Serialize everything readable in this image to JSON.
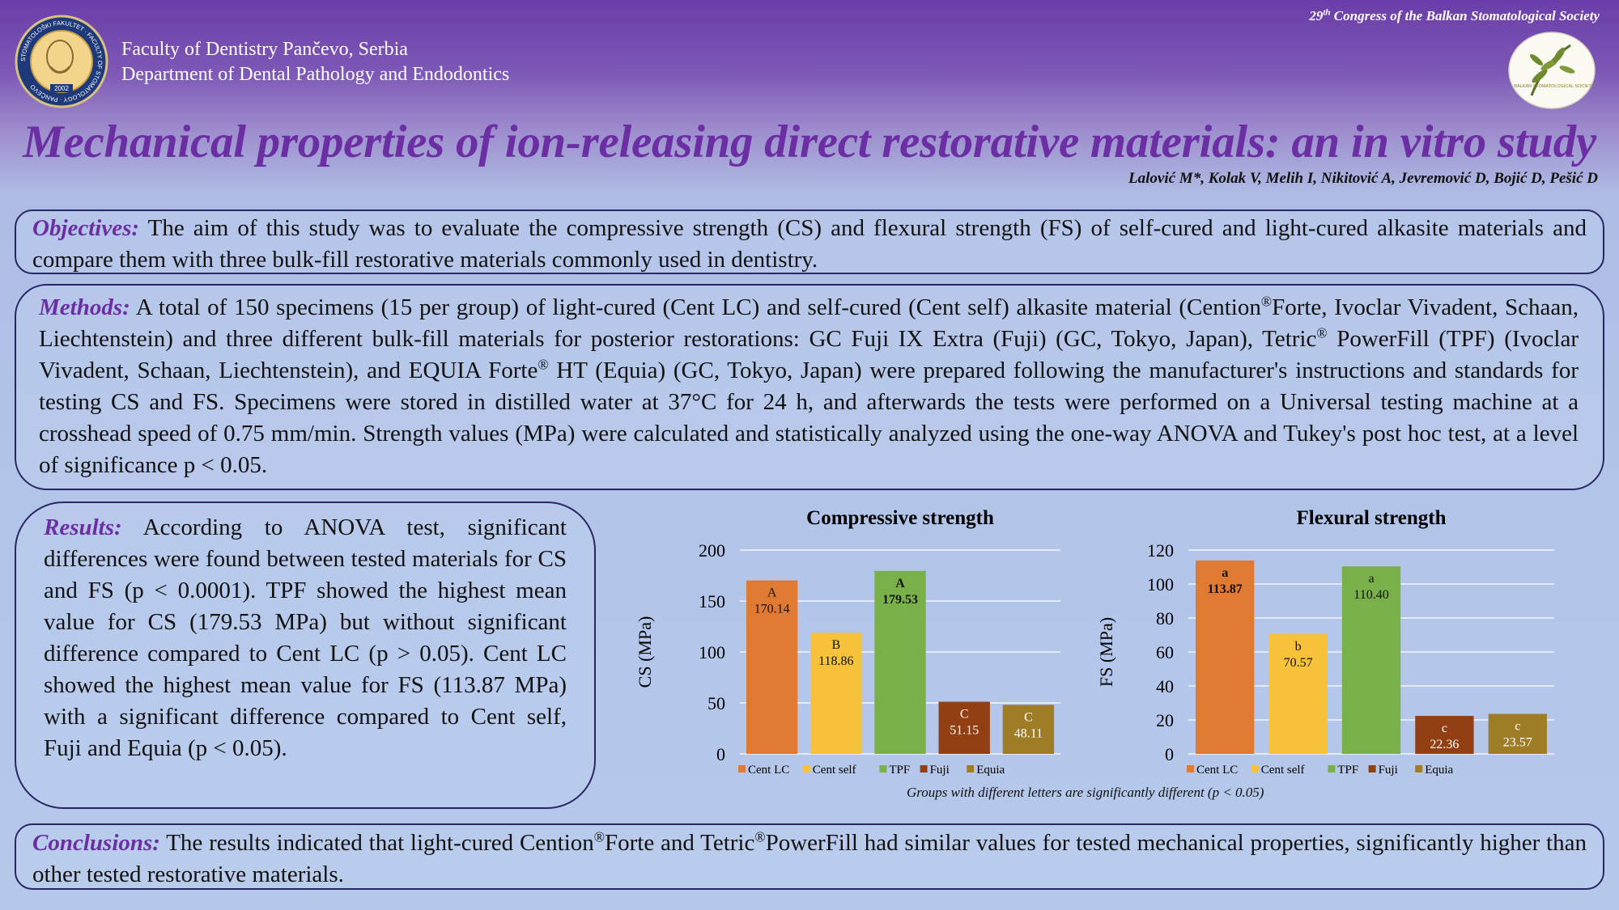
{
  "header": {
    "faculty_line1": "Faculty of Dentistry Pančevo, Serbia",
    "faculty_line2": "Department of Dental Pathology and Endodontics",
    "congress_ordinal": "29",
    "congress_sup": "th",
    "congress_text": " Congress of the Balkan Stomatological Society",
    "logo_left_text": "STOMATOLOŠKI FAKULTET · FACULTY OF STOMATOLOGY · PANČEVO",
    "logo_left_year": "2002",
    "logo_right_text": "BALKAN STOMATOLOGICAL SOCIETY"
  },
  "title": "Mechanical properties of ion-releasing direct restorative materials: an in vitro study",
  "authors": "Lalović M*, Kolak V, Melih I, Nikitović A, Jevremović D, Bojić D, Pešić D",
  "objectives": {
    "label": "Objectives:",
    "text": " The aim of this study was to evaluate the compressive strength (CS) and flexural strength (FS) of self-cured and light-cured alkasite materials and compare them with three bulk-fill restorative materials commonly used in dentistry."
  },
  "methods": {
    "label": "Methods:",
    "t1": " A total of 150 specimens (15 per group) of light-cured (Cent LC) and self-cured (Cent self) alkasite material (Cention",
    "t2": "Forte, Ivoclar Vivadent, Schaan, Liechtenstein) and three different bulk-fill materials for posterior restorations: GC Fuji IX Extra (Fuji) (GC, Tokyo, Japan), Tetric",
    "t3": " PowerFill (TPF) (Ivoclar Vivadent, Schaan, Liechtenstein), and EQUIA Forte",
    "t4": " HT (Equia) (GC, Tokyo, Japan) were prepared following the manufacturer's instructions and standards for testing CS and FS. Specimens were stored in distilled water at 37°C for 24 h, and afterwards the tests were performed on a Universal testing machine at a crosshead speed of 0.75 mm/min. Strength values (MPa) were calculated and statistically analyzed using the one-way ANOVA and Tukey's post hoc test, at a level of significance p < 0.05.",
    "reg": "®"
  },
  "results": {
    "label": "Results:",
    "text": " According to ANOVA test, significant differences were found between tested materials for CS and FS (p < 0.0001). TPF showed the highest mean value for CS (179.53 MPa) but without significant difference compared to Cent LC (p > 0.05). Cent LC showed the highest mean value for FS (113.87 MPa) with a significant difference compared to Cent self, Fuji and Equia (p < 0.05)."
  },
  "conclusions": {
    "label": "Conclusions:",
    "t1": " The results indicated that light-cured Cention",
    "t2": "Forte and Tetric",
    "t3": "PowerFill had similar values for tested mechanical properties, significantly higher than other tested restorative materials.",
    "reg": "®"
  },
  "footnote": "Groups with different letters are significantly different (p < 0.05)",
  "chart_data": [
    {
      "type": "bar",
      "title": "Compressive strength",
      "ylabel": "CS (MPa)",
      "xlabel": "",
      "ylim": [
        0,
        200
      ],
      "yticks": [
        0,
        50,
        100,
        150,
        200
      ],
      "grid": true,
      "legend": "bottom",
      "categories": [
        "Cent LC",
        "Cent self",
        "TPF",
        "Fuji",
        "Equia"
      ],
      "values": [
        170.14,
        118.86,
        179.53,
        51.15,
        48.11
      ],
      "labels": [
        "170.14",
        "118.86",
        "179.53",
        "51.15",
        "48.11"
      ],
      "letters": [
        "A",
        "B",
        "A",
        "C",
        "C"
      ],
      "bold_label": [
        false,
        false,
        true,
        false,
        false
      ],
      "colors": [
        "#e07a33",
        "#f5c23a",
        "#7ab04a",
        "#923f13",
        "#9e7d26"
      ]
    },
    {
      "type": "bar",
      "title": "Flexural strength",
      "ylabel": "FS (MPa)",
      "xlabel": "",
      "ylim": [
        0,
        120
      ],
      "yticks": [
        0,
        20,
        40,
        60,
        80,
        100,
        120
      ],
      "grid": true,
      "legend": "bottom",
      "categories": [
        "Cent LC",
        "Cent self",
        "TPF",
        "Fuji",
        "Equia"
      ],
      "values": [
        113.87,
        70.57,
        110.4,
        22.36,
        23.57
      ],
      "labels": [
        "113.87",
        "70.57",
        "110.40",
        "22.36",
        "23.57"
      ],
      "letters": [
        "a",
        "b",
        "a",
        "c",
        "c"
      ],
      "bold_label": [
        true,
        false,
        false,
        false,
        false
      ],
      "colors": [
        "#e07a33",
        "#f5c23a",
        "#7ab04a",
        "#923f13",
        "#9e7d26"
      ]
    }
  ]
}
